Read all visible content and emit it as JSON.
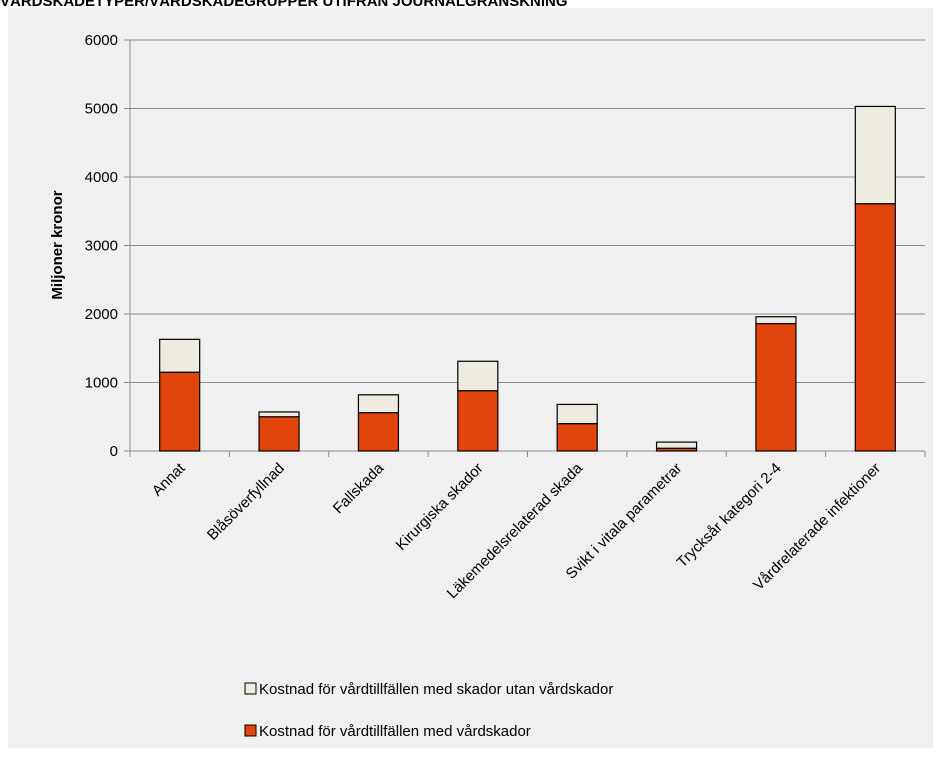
{
  "chart_data": {
    "type": "stacked_bar",
    "title": "VÅRDSKADETYPER/VÅRDSKADEGRUPPER UTIFRÅN JOURNALGRANSKNING",
    "y_label": "Miljoner kronor",
    "categories": [
      "Annat",
      "Blåsöverfyllnad",
      "Fallskada",
      "Kirurgiska skador",
      "Läkemedelsrelaterad skada",
      "Svikt i vitala parametrar",
      "Trycksår kategori 2-4",
      "Vårdrelaterade infektioner"
    ],
    "series": [
      {
        "name": "Kostnad för vårdtillfällen med vårdskador",
        "color": "#e2450b",
        "values": [
          1150,
          500,
          560,
          880,
          400,
          40,
          1860,
          3610
        ]
      },
      {
        "name": "Kostnad för vårdtillfällen med skador utan vårdskador",
        "color": "#eeece1",
        "values": [
          480,
          70,
          260,
          430,
          280,
          90,
          100,
          1420
        ]
      }
    ],
    "ylim": [
      0,
      6000
    ],
    "yticks": [
      0,
      1000,
      2000,
      3000,
      4000,
      5000,
      6000
    ],
    "grid": true
  }
}
